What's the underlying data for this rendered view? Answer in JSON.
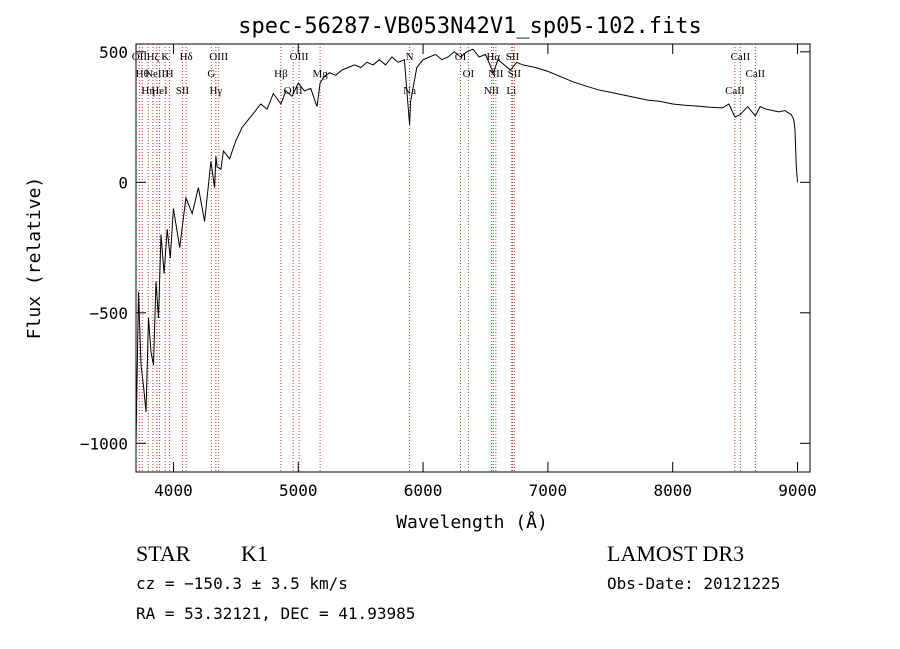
{
  "chart_data": {
    "type": "line",
    "title": "spec-56287-VB053N42V1_sp05-102.fits",
    "xlabel": "Wavelength (Å)",
    "ylabel": "Flux (relative)",
    "xlim": [
      3700,
      9100
    ],
    "ylim": [
      -1110,
      530
    ],
    "x_ticks": [
      4000,
      5000,
      6000,
      7000,
      8000,
      9000
    ],
    "x_tick_labels": [
      "4000",
      "5000",
      "6000",
      "7000",
      "8000",
      "9000"
    ],
    "y_ticks": [
      -1000,
      -500,
      0,
      500
    ],
    "y_tick_labels": [
      "−1000",
      "−500",
      "0",
      "500"
    ],
    "grid": false,
    "series": [
      {
        "color": "#000000",
        "x": [
          3700,
          3720,
          3740,
          3760,
          3780,
          3800,
          3820,
          3840,
          3860,
          3880,
          3900,
          3925,
          3950,
          3975,
          4000,
          4050,
          4100,
          4150,
          4200,
          4250,
          4300,
          4330,
          4340,
          4350,
          4380,
          4400,
          4450,
          4500,
          4550,
          4600,
          4650,
          4700,
          4750,
          4800,
          4861,
          4900,
          4950,
          5000,
          5050,
          5100,
          5150,
          5175,
          5200,
          5250,
          5300,
          5350,
          5400,
          5450,
          5500,
          5550,
          5600,
          5650,
          5700,
          5750,
          5800,
          5850,
          5892,
          5900,
          5950,
          6000,
          6050,
          6100,
          6150,
          6200,
          6250,
          6300,
          6350,
          6400,
          6450,
          6500,
          6563,
          6600,
          6650,
          6700,
          6750,
          6800,
          6900,
          7000,
          7100,
          7200,
          7300,
          7400,
          7500,
          7600,
          7700,
          7800,
          7900,
          8000,
          8100,
          8200,
          8300,
          8400,
          8450,
          8498,
          8542,
          8600,
          8662,
          8700,
          8750,
          8800,
          8850,
          8900,
          8930,
          8950,
          8970,
          8980,
          8990,
          9000
        ],
        "y": [
          -1000,
          -420,
          -700,
          -780,
          -880,
          -520,
          -650,
          -700,
          -380,
          -520,
          -200,
          -350,
          -180,
          -290,
          -100,
          -250,
          -60,
          -120,
          -20,
          -150,
          80,
          -20,
          100,
          60,
          50,
          120,
          90,
          160,
          210,
          240,
          270,
          300,
          280,
          340,
          300,
          350,
          330,
          380,
          350,
          360,
          290,
          380,
          400,
          420,
          410,
          430,
          440,
          450,
          440,
          460,
          450,
          470,
          450,
          480,
          460,
          470,
          220,
          310,
          440,
          470,
          480,
          490,
          470,
          480,
          500,
          480,
          500,
          510,
          480,
          490,
          420,
          470,
          450,
          430,
          460,
          450,
          440,
          425,
          405,
          385,
          370,
          355,
          345,
          335,
          325,
          315,
          310,
          300,
          295,
          292,
          288,
          285,
          300,
          250,
          260,
          290,
          255,
          290,
          280,
          275,
          270,
          275,
          265,
          260,
          240,
          200,
          60,
          0
        ]
      }
    ],
    "lines": [
      {
        "x": 3727,
        "labels": [
          "OII"
        ]
      },
      {
        "x": 3750,
        "labels": [
          "Hθ"
        ]
      },
      {
        "x": 3798,
        "labels": [
          "Hη"
        ]
      },
      {
        "x": 3835,
        "labels": [
          "Hζ"
        ]
      },
      {
        "x": 3868,
        "labels": [
          "NeIII"
        ]
      },
      {
        "x": 3889,
        "labels": [
          "HeI"
        ]
      },
      {
        "x": 3934,
        "labels": [
          "K"
        ]
      },
      {
        "x": 3969,
        "labels": [
          "H"
        ]
      },
      {
        "x": 4072,
        "labels": [
          "SII"
        ]
      },
      {
        "x": 4102,
        "labels": [
          "Hδ"
        ]
      },
      {
        "x": 4304,
        "labels": [
          "G"
        ]
      },
      {
        "x": 4340,
        "labels": [
          "Hγ"
        ]
      },
      {
        "x": 4363,
        "labels": [
          "OIII"
        ]
      },
      {
        "x": 4861,
        "labels": [
          "Hβ"
        ]
      },
      {
        "x": 4959,
        "labels": [
          "OIII"
        ]
      },
      {
        "x": 5007,
        "labels": [
          "OIII"
        ]
      },
      {
        "x": 5175,
        "labels": [
          "Mg"
        ]
      },
      {
        "x": 5892,
        "labels": [
          "Na",
          "N"
        ]
      },
      {
        "x": 6300,
        "labels": [
          "OI"
        ]
      },
      {
        "x": 6363,
        "labels": [
          "OI"
        ]
      },
      {
        "x": 6548,
        "labels": [
          "NII"
        ]
      },
      {
        "x": 6563,
        "labels": [
          "Hα"
        ]
      },
      {
        "x": 6583,
        "labels": [
          "NII"
        ]
      },
      {
        "x": 6707,
        "labels": [
          "Li"
        ]
      },
      {
        "x": 6716,
        "labels": [
          "SII"
        ]
      },
      {
        "x": 6731,
        "labels": [
          "SII"
        ]
      },
      {
        "x": 8498,
        "labels": [
          "CaII"
        ]
      },
      {
        "x": 8542,
        "labels": [
          "CaII"
        ]
      },
      {
        "x": 8662,
        "labels": [
          "CaII"
        ]
      }
    ]
  },
  "footer": {
    "object_class": "STAR",
    "subclass": "K1",
    "survey": "LAMOST DR3",
    "redshift": "cz = −150.3 ± 3.5 km/s",
    "obs_date": "Obs-Date: 20121225",
    "coords": "RA =  53.32121, DEC =  41.93985"
  },
  "label_snippets": [
    {
      "text": "Hθ"
    },
    {
      "text": "K"
    },
    {
      "text": "Hδ"
    },
    {
      "text": "OII"
    },
    {
      "text": "HeI"
    },
    {
      "text": "SII"
    },
    {
      "text": "OII"
    },
    {
      "text": "Hη"
    },
    {
      "text": "H"
    },
    {
      "text": "OIII"
    },
    {
      "text": "Hγ"
    },
    {
      "text": "G"
    },
    {
      "text": "OIII"
    },
    {
      "text": "OIII"
    },
    {
      "text": "Hβ"
    },
    {
      "text": "Na"
    },
    {
      "text": "N"
    },
    {
      "text": "OI"
    },
    {
      "text": "OI"
    },
    {
      "text": "NII"
    },
    {
      "text": "Hα"
    },
    {
      "text": "NII"
    },
    {
      "text": "SII"
    },
    {
      "text": "Li"
    },
    {
      "text": "SII"
    },
    {
      "text": "CaII"
    },
    {
      "text": "CaII"
    },
    {
      "text": "CaII"
    }
  ]
}
